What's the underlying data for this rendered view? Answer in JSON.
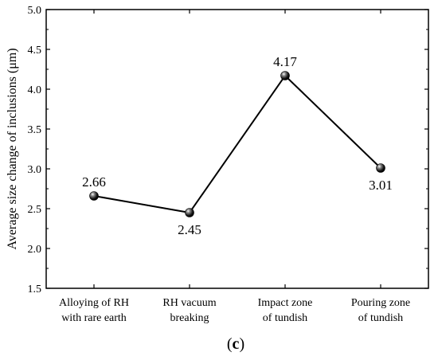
{
  "chart_data": {
    "type": "line",
    "categories": [
      "Alloying of RH\nwith rare earth",
      "RH vacuum\nbreaking",
      "Impact zone\nof tundish",
      "Pouring zone\nof tundish"
    ],
    "series": [
      {
        "values": [
          2.66,
          2.45,
          4.17,
          3.01
        ],
        "color": "#000000"
      }
    ],
    "data_labels": [
      "2.66",
      "2.45",
      "4.17",
      "3.01"
    ],
    "ylabel": "Average size change of inclusions (μm)",
    "xlabel": "",
    "ylim": [
      1.5,
      5.0
    ],
    "yticks": [
      "1.5",
      "2.0",
      "2.5",
      "3.0",
      "3.5",
      "4.0",
      "4.5",
      "5.0"
    ],
    "grid": false,
    "marker": "sphere"
  },
  "panel_label": {
    "open": "(",
    "letter": "c",
    "close": ")"
  }
}
